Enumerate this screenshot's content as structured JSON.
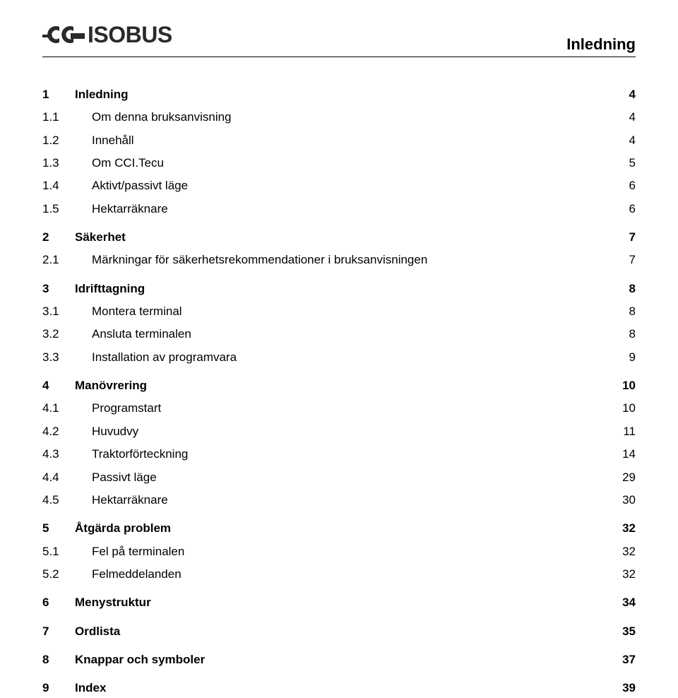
{
  "colors": {
    "text": "#000000",
    "logo": "#2a2a2a",
    "background": "#ffffff",
    "rule": "#000000"
  },
  "fonts": {
    "family": "Arial, Helvetica, sans-serif",
    "header_title_size": 22,
    "logo_text_size": 32,
    "toc_size": 17
  },
  "header": {
    "logo_text": "ISOBUS",
    "title": "Inledning"
  },
  "toc": [
    {
      "level": 1,
      "num": "1",
      "label": "Inledning",
      "page": "4"
    },
    {
      "level": 2,
      "num": "1.1",
      "label": "Om denna bruksanvisning",
      "page": "4"
    },
    {
      "level": 2,
      "num": "1.2",
      "label": "Innehåll",
      "page": "4"
    },
    {
      "level": 2,
      "num": "1.3",
      "label": "Om CCI.Tecu",
      "page": "5"
    },
    {
      "level": 2,
      "num": "1.4",
      "label": "Aktivt/passivt läge",
      "page": "6"
    },
    {
      "level": 2,
      "num": "1.5",
      "label": "Hektarräknare",
      "page": "6"
    },
    {
      "level": 1,
      "num": "2",
      "label": "Säkerhet",
      "page": "7"
    },
    {
      "level": 2,
      "num": "2.1",
      "label": "Märkningar för säkerhetsrekommendationer i bruksanvisningen",
      "page": "7"
    },
    {
      "level": 1,
      "num": "3",
      "label": "Idrifttagning",
      "page": "8"
    },
    {
      "level": 2,
      "num": "3.1",
      "label": "Montera terminal",
      "page": "8"
    },
    {
      "level": 2,
      "num": "3.2",
      "label": "Ansluta terminalen",
      "page": "8"
    },
    {
      "level": 2,
      "num": "3.3",
      "label": "Installation av programvara",
      "page": "9"
    },
    {
      "level": 1,
      "num": "4",
      "label": "Manövrering",
      "page": "10"
    },
    {
      "level": 2,
      "num": "4.1",
      "label": "Programstart",
      "page": "10"
    },
    {
      "level": 2,
      "num": "4.2",
      "label": "Huvudvy",
      "page": "11"
    },
    {
      "level": 2,
      "num": "4.3",
      "label": "Traktorförteckning",
      "page": "14"
    },
    {
      "level": 2,
      "num": "4.4",
      "label": "Passivt läge",
      "page": "29"
    },
    {
      "level": 2,
      "num": "4.5",
      "label": "Hektarräknare",
      "page": "30"
    },
    {
      "level": 1,
      "num": "5",
      "label": "Åtgärda problem",
      "page": "32"
    },
    {
      "level": 2,
      "num": "5.1",
      "label": "Fel på terminalen",
      "page": "32"
    },
    {
      "level": 2,
      "num": "5.2",
      "label": "Felmeddelanden",
      "page": "32"
    },
    {
      "level": 1,
      "num": "6",
      "label": "Menystruktur",
      "page": "34"
    },
    {
      "level": 1,
      "num": "7",
      "label": "Ordlista",
      "page": "35"
    },
    {
      "level": 1,
      "num": "8",
      "label": "Knappar och symboler",
      "page": "37"
    },
    {
      "level": 1,
      "num": "9",
      "label": "Index",
      "page": "39"
    }
  ]
}
